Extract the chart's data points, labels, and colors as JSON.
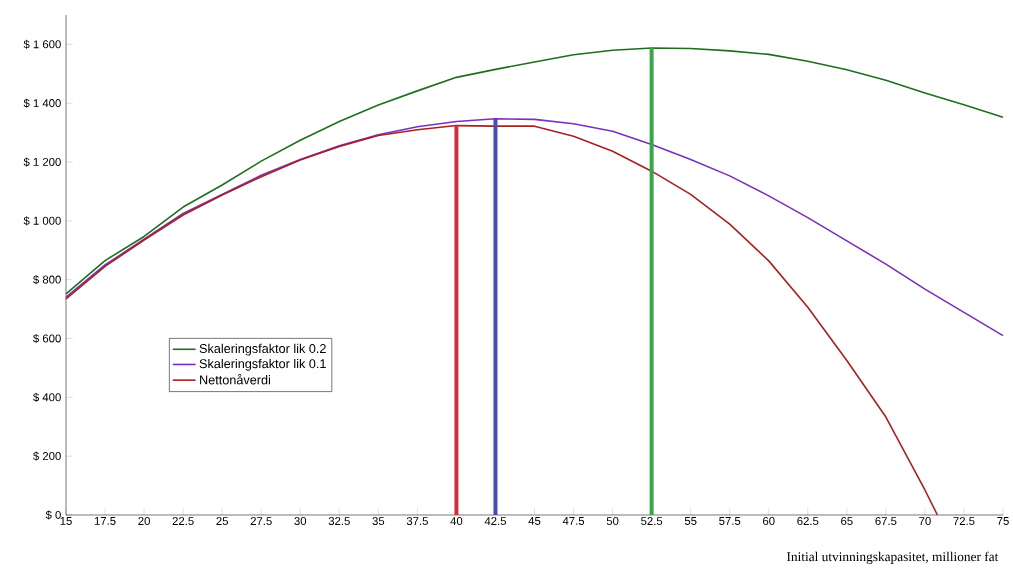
{
  "chart_data": {
    "type": "line",
    "xlabel": "Initial utvinningskapasitet, millioner fat",
    "x": [
      15,
      17.5,
      20,
      22.5,
      25,
      27.5,
      30,
      32.5,
      35,
      37.5,
      40,
      42.5,
      45,
      47.5,
      50,
      52.5,
      55,
      57.5,
      60,
      62.5,
      65,
      67.5,
      70,
      72.5,
      75
    ],
    "series": [
      {
        "name": "Skaleringsfaktor lik 0.2",
        "color": "#1f6e1f",
        "values": [
          752,
          865,
          947,
          1047,
          1122,
          1203,
          1274,
          1338,
          1394,
          1442,
          1488,
          1515,
          1540,
          1565,
          1580,
          1588,
          1586,
          1578,
          1566,
          1543,
          1514,
          1478,
          1435,
          1395,
          1352
        ]
      },
      {
        "name": "Skaleringsfaktor lik 0.1",
        "color": "#7a2fbf",
        "values": [
          741,
          850,
          938,
          1025,
          1090,
          1155,
          1209,
          1255,
          1293,
          1320,
          1338,
          1347,
          1345,
          1330,
          1305,
          1260,
          1209,
          1153,
          1085,
          1011,
          932,
          853,
          768,
          689,
          610
        ]
      },
      {
        "name": "Nettonåverdi",
        "color": "#a82020",
        "x": [
          15,
          17.5,
          20,
          22.5,
          25,
          27.5,
          30,
          32.5,
          35,
          37.5,
          40,
          42.5,
          45,
          47.5,
          50,
          52.5,
          55,
          57.5,
          60,
          62.5,
          65,
          67.5,
          70,
          70.8
        ],
        "values": [
          735,
          845,
          935,
          1020,
          1088,
          1150,
          1207,
          1253,
          1290,
          1310,
          1324,
          1322,
          1322,
          1288,
          1237,
          1169,
          1090,
          989,
          864,
          706,
          525,
          333,
          85,
          0
        ]
      },
      {
        "type": "bar",
        "color": "#d03040",
        "x": [
          40
        ],
        "values": [
          1324
        ]
      },
      {
        "type": "bar",
        "color": "#4a4ab8",
        "x": [
          42.5
        ],
        "values": [
          1347
        ]
      },
      {
        "type": "bar",
        "color": "#3aa64a",
        "x": [
          52.5
        ],
        "values": [
          1588
        ]
      }
    ],
    "xlim": [
      15,
      75
    ],
    "ylim": [
      0,
      1700
    ],
    "xticks": [
      15,
      17.5,
      20,
      22.5,
      25,
      27.5,
      30,
      32.5,
      35,
      37.5,
      40,
      42.5,
      45,
      47.5,
      50,
      52.5,
      55,
      57.5,
      60,
      62.5,
      65,
      67.5,
      70,
      72.5,
      75
    ],
    "yticks": [
      {
        "value": 0,
        "label": "$ 0"
      },
      {
        "value": 200,
        "label": "$ 200"
      },
      {
        "value": 400,
        "label": "$ 400"
      },
      {
        "value": 600,
        "label": "$ 600"
      },
      {
        "value": 800,
        "label": "$ 800"
      },
      {
        "value": 1000,
        "label": "$ 1 000"
      },
      {
        "value": 1200,
        "label": "$ 1 200"
      },
      {
        "value": 1400,
        "label": "$ 1 400"
      },
      {
        "value": 1600,
        "label": "$ 1 600"
      }
    ],
    "legend": "left",
    "grid": false
  }
}
